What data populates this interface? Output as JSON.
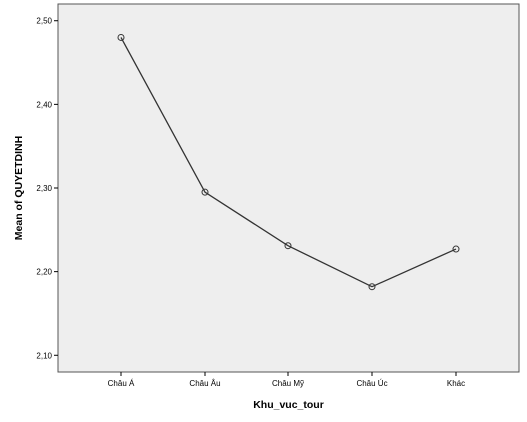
{
  "chart_data": {
    "type": "line",
    "xlabel": "Khu_vuc_tour",
    "ylabel": "Mean of QUYETDINH",
    "categories": [
      "Châu Á",
      "Châu Âu",
      "Châu Mỹ",
      "Châu Úc",
      "Khác"
    ],
    "series": [
      {
        "values": [
          2.48,
          2.295,
          2.231,
          2.182,
          2.227
        ]
      }
    ],
    "ylim": [
      2.08,
      2.52
    ],
    "yticks": [
      2.1,
      2.2,
      2.3,
      2.4,
      2.5
    ],
    "ytick_labels": [
      "2,10",
      "2,20",
      "2,30",
      "2,40",
      "2,50"
    ],
    "grid": false,
    "marker": "open-circle",
    "colors": {
      "plot_background": "#eeeeee",
      "line": "#333333",
      "marker_stroke": "#333333",
      "frame": "#555555"
    }
  }
}
